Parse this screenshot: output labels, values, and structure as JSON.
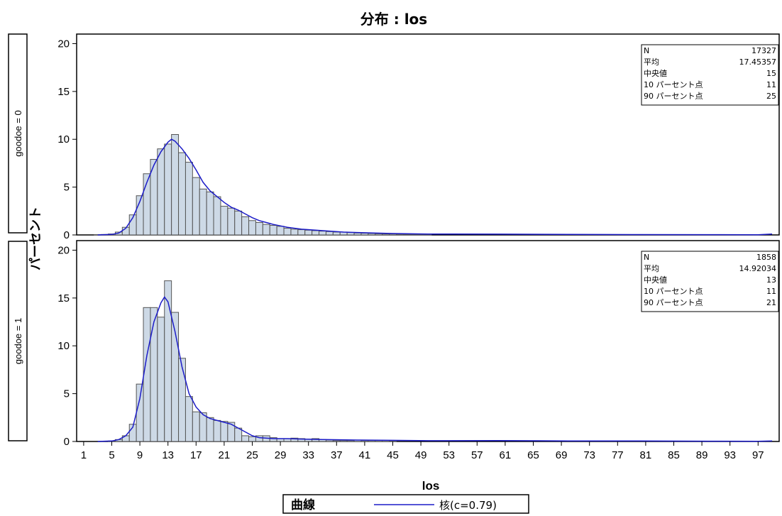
{
  "chart_data": {
    "type": "bar",
    "title": "分布 : los",
    "xlabel": "los",
    "ylabel": "パーセント",
    "xlim": [
      0,
      100
    ],
    "ylim": [
      0,
      21
    ],
    "yticks": [
      0,
      5,
      10,
      15,
      20
    ],
    "xticks": [
      1,
      5,
      9,
      13,
      17,
      21,
      25,
      29,
      33,
      37,
      41,
      45,
      49,
      53,
      57,
      61,
      65,
      69,
      73,
      77,
      81,
      85,
      89,
      93,
      97
    ],
    "bin_width": 1,
    "bar_color": "#cdd9e6",
    "bar_edge": "#555555",
    "curve_color": "#1c1cc8",
    "legend": {
      "title": "曲線",
      "entry": "核(c=0.79)",
      "placement": "bottom-center"
    },
    "panels": [
      {
        "label": "goodoe = 0",
        "bins_x": [
          3,
          4,
          5,
          6,
          7,
          8,
          9,
          10,
          11,
          12,
          13,
          14,
          15,
          16,
          17,
          18,
          19,
          20,
          21,
          22,
          23,
          24,
          25,
          26,
          27,
          28,
          29,
          30,
          31,
          32,
          33,
          34,
          35,
          36,
          37,
          38,
          39,
          40,
          41,
          42,
          43,
          44,
          45,
          46,
          47,
          48,
          49,
          50
        ],
        "bins_y": [
          0.02,
          0.05,
          0.1,
          0.3,
          0.8,
          2.1,
          4.1,
          6.4,
          7.9,
          9.0,
          9.5,
          10.5,
          8.6,
          7.6,
          6.0,
          4.8,
          4.5,
          4.0,
          3.0,
          2.8,
          2.5,
          1.9,
          1.5,
          1.3,
          1.1,
          1.0,
          0.9,
          0.7,
          0.6,
          0.55,
          0.5,
          0.45,
          0.4,
          0.35,
          0.3,
          0.3,
          0.25,
          0.2,
          0.18,
          0.15,
          0.12,
          0.1,
          0.1,
          0.08,
          0.07,
          0.06,
          0.06,
          0.05
        ],
        "curve_x": [
          3,
          5,
          6,
          7,
          8,
          9,
          10,
          11,
          12,
          13,
          13.5,
          14,
          15,
          16,
          17,
          18,
          19,
          20,
          21,
          22,
          23,
          24,
          25,
          26,
          27,
          28,
          29,
          30,
          32,
          34,
          36,
          38,
          40,
          45,
          50,
          60,
          70,
          80,
          90,
          97,
          99
        ],
        "curve_y": [
          0,
          0.05,
          0.2,
          0.7,
          1.8,
          3.5,
          5.5,
          7.3,
          8.7,
          9.7,
          10.0,
          9.8,
          9.0,
          8.0,
          6.8,
          5.5,
          4.6,
          4.0,
          3.4,
          2.9,
          2.6,
          2.2,
          1.8,
          1.5,
          1.3,
          1.1,
          0.95,
          0.8,
          0.6,
          0.5,
          0.4,
          0.3,
          0.25,
          0.15,
          0.1,
          0.08,
          0.05,
          0.04,
          0.03,
          0.02,
          0.1
        ],
        "stats": [
          {
            "label": "N",
            "value": "17327"
          },
          {
            "label": "平均",
            "value": "17.45357"
          },
          {
            "label": "中央値",
            "value": "15"
          },
          {
            "label": " 10 パーセント点",
            "value": "11"
          },
          {
            "label": " 90 パーセント点",
            "value": "25"
          }
        ]
      },
      {
        "label": "goodoe = 1",
        "bins_x": [
          5,
          6,
          7,
          8,
          9,
          10,
          11,
          12,
          13,
          14,
          15,
          16,
          17,
          18,
          19,
          20,
          21,
          22,
          23,
          24,
          25,
          26,
          27,
          28,
          29,
          30,
          31,
          32,
          33,
          34,
          35,
          36,
          37,
          38,
          39,
          40,
          41,
          42,
          43,
          44,
          45
        ],
        "bins_y": [
          0.05,
          0.2,
          0.6,
          1.8,
          6.0,
          14.0,
          14.0,
          13.0,
          16.8,
          13.5,
          8.7,
          4.7,
          3.1,
          3.0,
          2.5,
          2.2,
          2.1,
          2.0,
          1.4,
          0.6,
          0.5,
          0.6,
          0.6,
          0.4,
          0.3,
          0.3,
          0.35,
          0.3,
          0.25,
          0.3,
          0.2,
          0.15,
          0.1,
          0.1,
          0.1,
          0.15,
          0.1,
          0.1,
          0.1,
          0.1,
          0.08
        ],
        "curve_x": [
          3,
          5,
          6,
          7,
          8,
          9,
          10,
          11,
          12,
          12.5,
          13,
          14,
          15,
          16,
          17,
          18,
          19,
          20,
          21,
          22,
          23,
          24,
          25,
          26,
          28,
          30,
          32,
          35,
          40,
          45,
          50,
          60,
          70,
          80,
          90,
          97,
          99
        ],
        "curve_y": [
          0,
          0.05,
          0.2,
          0.6,
          1.5,
          4.5,
          9.0,
          12.5,
          14.5,
          15.1,
          14.6,
          11.5,
          7.8,
          5.0,
          3.6,
          2.8,
          2.4,
          2.2,
          2.0,
          1.8,
          1.4,
          1.0,
          0.6,
          0.4,
          0.3,
          0.3,
          0.25,
          0.2,
          0.15,
          0.12,
          0.08,
          0.1,
          0.06,
          0.05,
          0.03,
          0.02,
          0.05
        ],
        "stats": [
          {
            "label": "N",
            "value": "1858"
          },
          {
            "label": "平均",
            "value": "14.92034"
          },
          {
            "label": "中央値",
            "value": "13"
          },
          {
            "label": " 10 パーセント点",
            "value": "11"
          },
          {
            "label": " 90 パーセント点",
            "value": "21"
          }
        ]
      }
    ]
  }
}
